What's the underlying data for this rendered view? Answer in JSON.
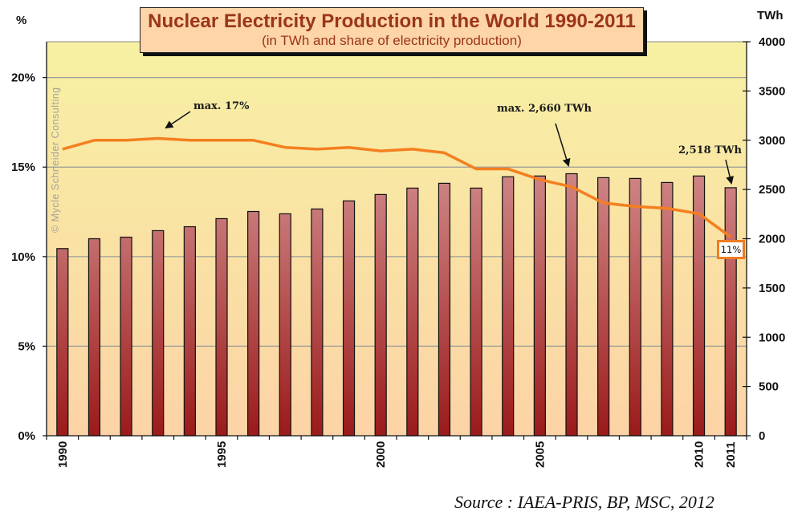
{
  "chart_data": {
    "type": "bar+line",
    "title": "Nuclear Electricity Production in the World 1990-2011",
    "subtitle": "(in TWh and share of electricity production)",
    "categories": [
      "1990",
      "1991",
      "1992",
      "1993",
      "1994",
      "1995",
      "1996",
      "1997",
      "1998",
      "1999",
      "2000",
      "2001",
      "2002",
      "2003",
      "2004",
      "2005",
      "2006",
      "2007",
      "2008",
      "2009",
      "2010",
      "2011"
    ],
    "x_tick_labels": [
      "1990",
      "1995",
      "2000",
      "2005",
      "2010",
      "2011"
    ],
    "series": [
      {
        "name": "Nuclear electricity production (TWh)",
        "type": "bar",
        "axis": "right",
        "values": [
          1900,
          2000,
          2016,
          2082,
          2122,
          2204,
          2277,
          2253,
          2302,
          2384,
          2449,
          2514,
          2563,
          2514,
          2629,
          2637,
          2660,
          2620,
          2612,
          2571,
          2637,
          2518
        ]
      },
      {
        "name": "Share of electricity production (%)",
        "type": "line",
        "axis": "left",
        "values": [
          16.0,
          16.5,
          16.5,
          16.6,
          16.5,
          16.5,
          16.5,
          16.1,
          16.0,
          16.1,
          15.9,
          16.0,
          15.8,
          14.9,
          14.9,
          14.3,
          13.9,
          13.0,
          12.8,
          12.7,
          12.4,
          11.1
        ]
      }
    ],
    "left_axis": {
      "label": "%",
      "ylim": [
        0,
        22
      ],
      "ticks": [
        0,
        5,
        10,
        15,
        20
      ],
      "tick_labels": [
        "0%",
        "5%",
        "10%",
        "15%",
        "20%"
      ]
    },
    "right_axis": {
      "label": "TWh",
      "ylim": [
        0,
        4000
      ],
      "ticks": [
        0,
        500,
        1000,
        1500,
        2000,
        2500,
        3000,
        3500,
        4000
      ],
      "tick_labels": [
        "0",
        "500",
        "1000",
        "1500",
        "2000",
        "2500",
        "3000",
        "3500",
        "4000"
      ]
    },
    "grid": true,
    "annotations": [
      {
        "text": "max. 17%",
        "target_category": "1993",
        "series": "line"
      },
      {
        "text": "max. 2,660 TWh",
        "target_category": "2006",
        "series": "bar"
      },
      {
        "text": "2,518 TWh",
        "target_category": "2011",
        "series": "bar"
      },
      {
        "text": "11%",
        "target_category": "2011",
        "series": "line",
        "boxed": true
      }
    ],
    "watermark": "© Mycle Schneider Consulting",
    "source": "Source : IAEA-PRIS, BP, MSC, 2012"
  },
  "colors": {
    "line": "#f47f20",
    "bar_top": "#e3b7b7",
    "bar_bottom": "#9b1a1a",
    "bg_top": "#f7f1a3",
    "bg_bottom": "#fcd3a6",
    "title_text": "#9b3519",
    "title_bg": "#fdd5a8",
    "gridline": "#9a9a9a"
  }
}
